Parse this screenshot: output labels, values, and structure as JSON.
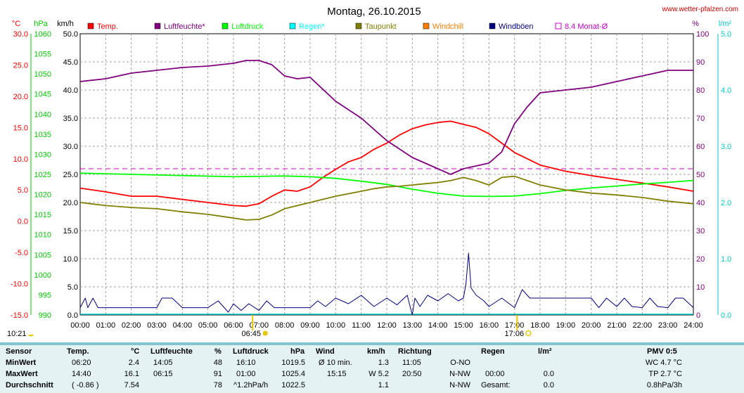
{
  "chart_data": {
    "type": "line",
    "title": "Montag, 26.10.2015",
    "website": "www.wetter-pfalzen.com",
    "x_ticks": [
      "00:00",
      "01:00",
      "02:00",
      "03:00",
      "04:00",
      "05:00",
      "06:00",
      "07:00",
      "08:00",
      "09:00",
      "10:00",
      "11:00",
      "12:00",
      "13:00",
      "14:00",
      "15:00",
      "16:00",
      "17:00",
      "18:00",
      "19:00",
      "20:00",
      "21:00",
      "22:00",
      "23:00",
      "24:00"
    ],
    "sun_events": {
      "sunrise_label": "06:45",
      "sunrise_hour": 6.75,
      "sunset_label": "17:06",
      "sunset_hour": 17.1,
      "moon_label": "10:21"
    },
    "axes": {
      "temp": {
        "unit": "°C",
        "range": [
          -15,
          30
        ],
        "ticks": [
          "30.0",
          "25.0",
          "20.0",
          "15.0",
          "10.0",
          "5.0",
          "0.0",
          "-5.0",
          "-10.0",
          "-15.0"
        ],
        "color": "#ff0000"
      },
      "pressure": {
        "unit": "hPa",
        "range": [
          990,
          1060
        ],
        "ticks": [
          "1060",
          "1055",
          "1050",
          "1045",
          "1040",
          "1035",
          "1030",
          "1025",
          "1020",
          "1015",
          "1010",
          "1005",
          "1000",
          "995",
          "990"
        ],
        "color": "#00cc00"
      },
      "wind": {
        "unit": "km/h",
        "range": [
          0,
          50
        ],
        "ticks": [
          "50.0",
          "45.0",
          "40.0",
          "35.0",
          "30.0",
          "25.0",
          "20.0",
          "15.0",
          "10.0",
          "5.0",
          "0.0"
        ],
        "color": "#000000"
      },
      "humidity": {
        "unit": "%",
        "range": [
          0,
          100
        ],
        "ticks": [
          "100",
          "90",
          "80",
          "70",
          "60",
          "50",
          "40",
          "30",
          "20",
          "10",
          "0"
        ],
        "color": "#800080"
      },
      "rain": {
        "unit": "l/m²",
        "range": [
          0,
          5
        ],
        "ticks": [
          "5.0",
          "4.0",
          "3.0",
          "2.0",
          "1.0",
          "0.0"
        ],
        "color": "#00cccc"
      }
    },
    "legend": [
      {
        "label": "Temp.",
        "color": "#ff0000",
        "type": "square"
      },
      {
        "label": "Luftfeuchte*",
        "color": "#800080",
        "type": "square"
      },
      {
        "label": "Luftdruck",
        "color": "#00ff00",
        "type": "square"
      },
      {
        "label": "Regen*",
        "color": "#00ffff",
        "type": "square"
      },
      {
        "label": "Taupunkt",
        "color": "#808000",
        "type": "square"
      },
      {
        "label": "Windchill",
        "color": "#ff8000",
        "type": "square"
      },
      {
        "label": "Windböen",
        "color": "#000080",
        "type": "square"
      },
      {
        "label": "8.4 Monat-Ø",
        "color": "#cc00cc",
        "type": "outline"
      }
    ],
    "monthly_avg_temp": 8.4,
    "series": [
      {
        "name": "Temp.",
        "axis": "temp",
        "color": "#ff0000",
        "hours": [
          0,
          1,
          2,
          3,
          4,
          5,
          6,
          6.5,
          7,
          7.5,
          8,
          8.5,
          9,
          9.5,
          10,
          10.5,
          11,
          11.5,
          12,
          12.5,
          13,
          13.5,
          14,
          14.5,
          15,
          15.5,
          16,
          16.5,
          17,
          17.5,
          18,
          19,
          20,
          21,
          22,
          23,
          24
        ],
        "values": [
          5.3,
          4.7,
          4.0,
          4.0,
          3.5,
          3.0,
          2.5,
          2.4,
          2.8,
          4.0,
          5.0,
          4.8,
          5.5,
          7.0,
          8.3,
          9.5,
          10.2,
          11.5,
          12.5,
          13.8,
          14.8,
          15.4,
          15.8,
          16.0,
          15.5,
          15.0,
          14.0,
          12.5,
          11.0,
          10.0,
          9.0,
          8.0,
          7.3,
          6.7,
          6.1,
          5.5,
          4.8
        ]
      },
      {
        "name": "Luftfeuchte*",
        "axis": "humidity",
        "color": "#800080",
        "hours": [
          0,
          1,
          2,
          3,
          4,
          5,
          6,
          6.5,
          7,
          7.5,
          8,
          8.5,
          9,
          10,
          11,
          12,
          12.5,
          13,
          13.5,
          14,
          14.5,
          15,
          15.5,
          16,
          16.5,
          17,
          17.5,
          18,
          19,
          20,
          21,
          22,
          23,
          24
        ],
        "values": [
          83,
          84,
          86,
          87,
          88,
          88.5,
          89.5,
          90.5,
          90.5,
          89,
          85,
          84,
          84.5,
          76,
          70,
          62,
          59,
          56,
          54,
          52,
          50,
          52,
          53,
          54,
          58,
          68,
          74,
          79,
          80,
          81,
          83,
          85,
          87,
          87
        ]
      },
      {
        "name": "Luftdruck",
        "axis": "pressure",
        "color": "#00ff00",
        "hours": [
          0,
          2,
          4,
          6,
          8,
          9,
          10,
          11,
          12,
          13,
          14,
          15,
          16,
          17,
          18,
          19,
          20,
          21,
          22,
          23,
          24
        ],
        "values": [
          1025.3,
          1025.0,
          1024.7,
          1024.4,
          1024.6,
          1024.4,
          1024.0,
          1023.3,
          1022.5,
          1021.3,
          1020.3,
          1019.6,
          1019.5,
          1019.6,
          1020.2,
          1021.0,
          1021.6,
          1022.1,
          1022.6,
          1023.0,
          1023.5
        ]
      },
      {
        "name": "Taupunkt",
        "axis": "temp",
        "color": "#808000",
        "hours": [
          0,
          1,
          2,
          3,
          4,
          5,
          6,
          6.5,
          7,
          7.5,
          8,
          9,
          10,
          11,
          11.5,
          12,
          12.5,
          13,
          13.5,
          14,
          14.5,
          15,
          15.5,
          16,
          16.5,
          17,
          17.5,
          18,
          19,
          20,
          21,
          22,
          23,
          24
        ],
        "values": [
          3.0,
          2.5,
          2.2,
          2.0,
          1.5,
          1.1,
          0.5,
          0.2,
          0.3,
          1.0,
          2.0,
          3.0,
          4.0,
          4.8,
          5.2,
          5.5,
          5.6,
          5.8,
          6.0,
          6.2,
          6.5,
          7.0,
          6.5,
          5.8,
          7.0,
          7.2,
          6.5,
          5.8,
          5.0,
          4.5,
          4.2,
          3.8,
          3.2,
          2.8
        ]
      },
      {
        "name": "Windböen",
        "axis": "wind",
        "color": "#000080",
        "hours": [
          0,
          0.2,
          0.3,
          0.5,
          0.7,
          1.0,
          3.0,
          3.2,
          3.6,
          4.0,
          5.0,
          5.4,
          5.8,
          6.0,
          6.3,
          6.6,
          7.0,
          7.3,
          7.6,
          8.0,
          9.0,
          9.3,
          9.6,
          10.0,
          10.5,
          11.0,
          11.5,
          12.0,
          12.4,
          12.8,
          13.0,
          13.1,
          13.3,
          13.6,
          14.0,
          14.4,
          14.8,
          15.0,
          15.1,
          15.2,
          15.3,
          15.5,
          15.8,
          16.0,
          16.5,
          17.0,
          17.3,
          17.6,
          18.0,
          19.0,
          20.0,
          20.3,
          20.6,
          21.0,
          21.3,
          21.6,
          22.0,
          22.3,
          22.6,
          23.0,
          23.3,
          23.6,
          24.0
        ],
        "values": [
          1.3,
          3.0,
          1.3,
          3.0,
          1.3,
          1.3,
          1.3,
          3.0,
          3.0,
          1.3,
          1.3,
          2.5,
          0.5,
          2.0,
          0.8,
          2.0,
          0.8,
          2.5,
          1.3,
          1.3,
          1.3,
          2.5,
          1.5,
          3.0,
          2.0,
          3.5,
          1.5,
          3.0,
          1.8,
          3.5,
          0,
          3.0,
          1.5,
          3.5,
          2.5,
          3.8,
          2.5,
          3.0,
          5.5,
          11.0,
          4.8,
          3.5,
          2.5,
          1.5,
          3.0,
          1.3,
          4.5,
          3.0,
          3.0,
          3.0,
          3.0,
          1.3,
          3.0,
          1.5,
          3.0,
          1.5,
          1.3,
          3.0,
          1.5,
          1.3,
          3.0,
          3.0,
          1.3
        ]
      }
    ]
  },
  "table": {
    "headers": {
      "sensor": "Sensor",
      "temp": "Temp.",
      "temp_unit": "°C",
      "hum": "Luftfeuchte",
      "hum_unit": "%",
      "press": "Luftdruck",
      "press_unit": "hPa",
      "wind": "Wind",
      "wind_unit": "km/h",
      "dir": "Richtung",
      "rain": "Regen",
      "rain_unit": "l/m²",
      "pmv": "PMV 0:5"
    },
    "rows": [
      {
        "label": "MinWert",
        "temp_time": "06:20",
        "temp_val": "2.4",
        "hum_time": "14:05",
        "hum_val": "48",
        "press_time": "16:10",
        "press_val": "1019.5",
        "wind_label": "Ø 10 min.",
        "wind_val": "1.3",
        "dir_time": "11:05",
        "dir_val": "O-NO",
        "rain_time": "",
        "rain_val": "",
        "pmv": "WC 4.7 °C"
      },
      {
        "label": "MaxWert",
        "temp_time": "14:40",
        "temp_val": "16.1",
        "hum_time": "06:15",
        "hum_val": "91",
        "press_time": "01:00",
        "press_val": "1025.4",
        "wind_label": "15:15",
        "wind_val": "W 5.2",
        "dir_time": "20:50",
        "dir_val": "N-NW",
        "rain_time": "00:00",
        "rain_val": "0.0",
        "pmv": "TP 2.7 °C"
      },
      {
        "label": "Durchschnitt",
        "temp_time": "( -0.86 )",
        "temp_val": "7.54",
        "hum_time": "",
        "hum_val": "78",
        "press_time": "^1.2hPa/h",
        "press_val": "1022.5",
        "wind_label": "",
        "wind_val": "1.1",
        "dir_time": "",
        "dir_val": "N-NW",
        "rain_time": "Gesamt:",
        "rain_val": "0.0",
        "pmv": "0.8hPa/3h"
      }
    ]
  }
}
